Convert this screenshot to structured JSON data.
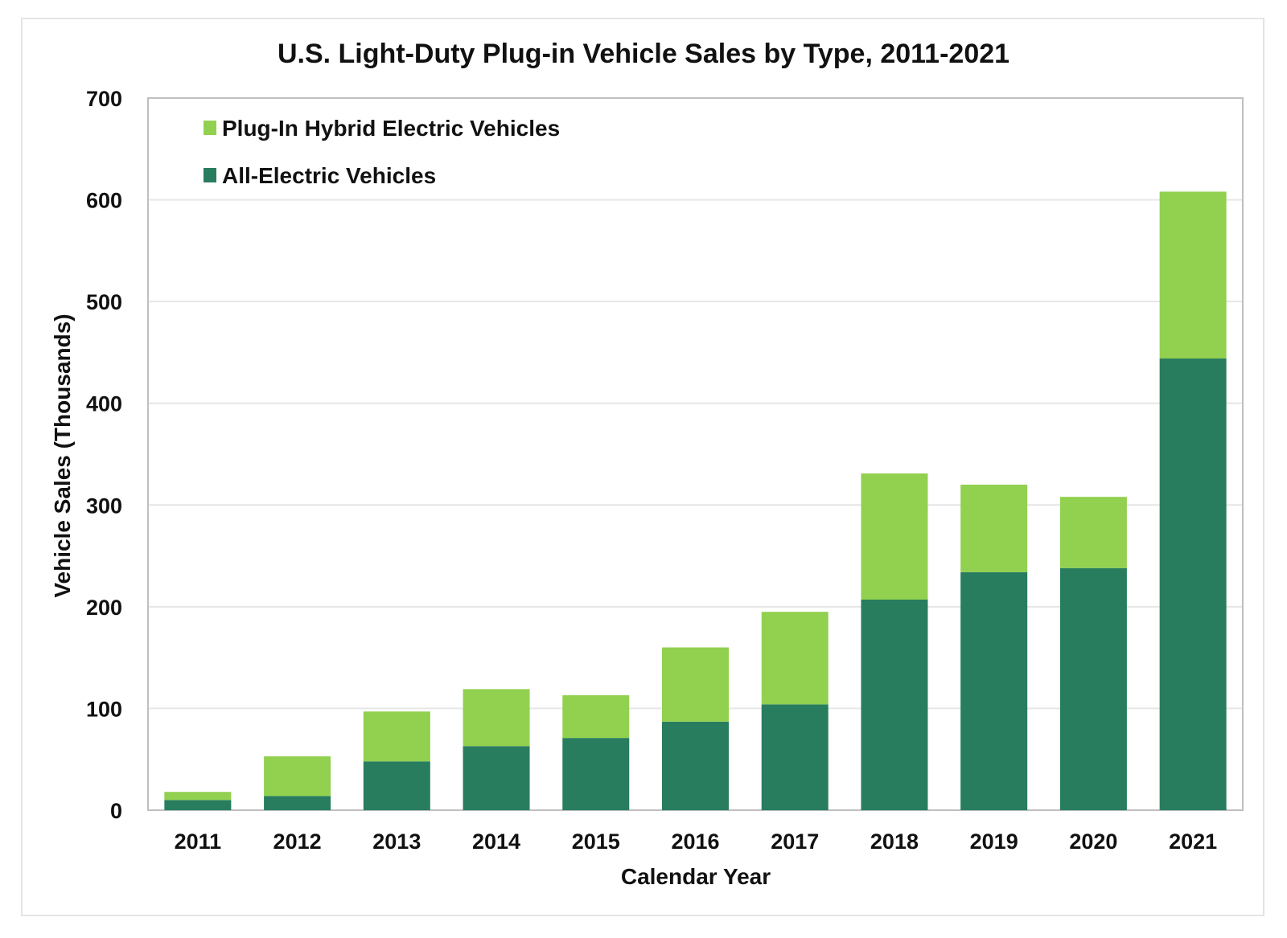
{
  "chart_data": {
    "type": "bar",
    "stacked": true,
    "title": "U.S. Light-Duty Plug-in Vehicle Sales by Type, 2011-2021",
    "xlabel": "Calendar Year",
    "ylabel": "Vehicle Sales (Thousands)",
    "ylim": [
      0,
      700
    ],
    "yticks": [
      0,
      100,
      200,
      300,
      400,
      500,
      600,
      700
    ],
    "grid": true,
    "legend_position": "top-left",
    "categories": [
      "2011",
      "2012",
      "2013",
      "2014",
      "2015",
      "2016",
      "2017",
      "2018",
      "2019",
      "2020",
      "2021"
    ],
    "series": [
      {
        "name": "All-Electric Vehicles",
        "color": "#287d5e",
        "values": [
          10,
          14,
          48,
          63,
          71,
          87,
          104,
          207,
          234,
          238,
          444
        ]
      },
      {
        "name": "Plug-In Hybrid Electric Vehicles",
        "color": "#92d050",
        "values": [
          8,
          39,
          49,
          56,
          42,
          73,
          91,
          124,
          86,
          70,
          164
        ]
      }
    ],
    "legend_order": [
      "Plug-In Hybrid Electric Vehicles",
      "All-Electric Vehicles"
    ]
  }
}
